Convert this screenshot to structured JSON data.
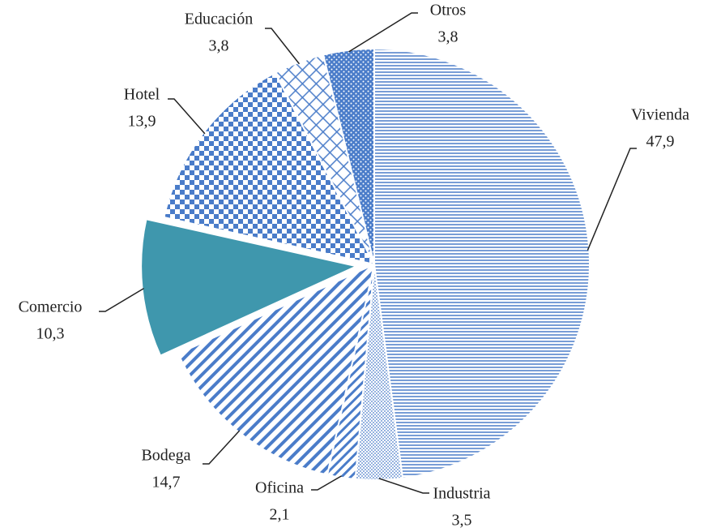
{
  "chart_data": {
    "type": "pie",
    "categories": [
      "Vivienda",
      "Industria",
      "Oficina",
      "Bodega",
      "Comercio",
      "Hotel",
      "Educación",
      "Otros"
    ],
    "values": [
      47.9,
      3.5,
      2.1,
      14.7,
      10.3,
      13.9,
      3.8,
      3.8
    ],
    "value_labels": [
      "47,9",
      "3,5",
      "2,1",
      "14,7",
      "10,3",
      "13,9",
      "3,8",
      "3,8"
    ],
    "colors": [
      "#4a7cc9",
      "#4a7cc9",
      "#4a7cc9",
      "#4a7cc9",
      "#3f97ad",
      "#4a7cc9",
      "#4a7cc9",
      "#4a7cc9"
    ],
    "explode": [
      false,
      false,
      false,
      false,
      true,
      false,
      false,
      false
    ]
  }
}
